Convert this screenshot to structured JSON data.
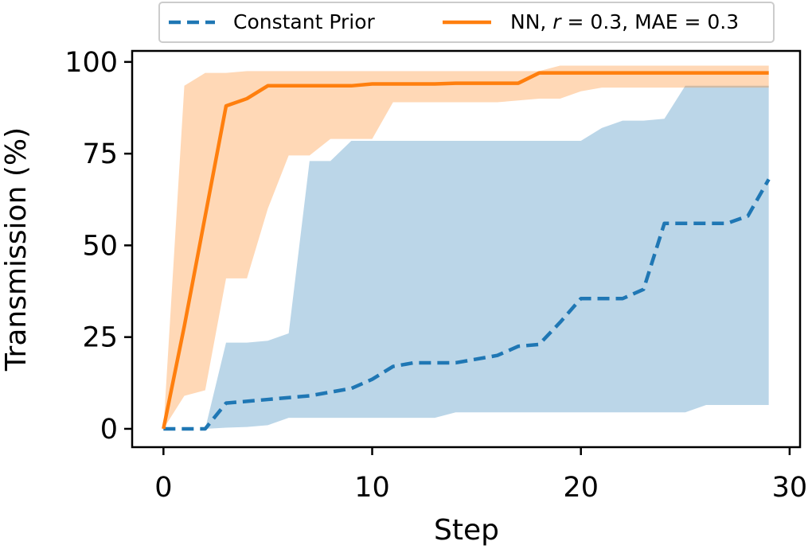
{
  "chart_data": {
    "type": "line",
    "xlabel": "Step",
    "ylabel": "Transmission (%)",
    "xlim": [
      -1.5,
      30.5
    ],
    "ylim": [
      -5,
      103
    ],
    "xticks": [
      0,
      10,
      20,
      30
    ],
    "yticks": [
      0,
      25,
      50,
      75,
      100
    ],
    "xtick_labels": [
      "0",
      "10",
      "20",
      "30"
    ],
    "ytick_labels": [
      "0",
      "25",
      "50",
      "75",
      "100"
    ],
    "grid": false,
    "legend_position": "top-center-outside",
    "series": [
      {
        "name": "Constant Prior",
        "color": "#1f77b4",
        "linestyle": "dashed",
        "x": [
          0,
          1,
          2,
          3,
          4,
          5,
          6,
          7,
          8,
          9,
          10,
          11,
          12,
          13,
          14,
          15,
          16,
          17,
          18,
          19,
          20,
          21,
          22,
          23,
          24,
          25,
          26,
          27,
          28,
          29
        ],
        "y": [
          0,
          0,
          0,
          7,
          7.5,
          8,
          8.5,
          9,
          10,
          11,
          13.5,
          17,
          18,
          18,
          18,
          19,
          20,
          22.5,
          23,
          29,
          35.5,
          35.5,
          35.5,
          38,
          56,
          56,
          56,
          56,
          58,
          68
        ],
        "band_lower": [
          0,
          0,
          0,
          0.3,
          0.5,
          1,
          3,
          3,
          3,
          3,
          3,
          3,
          3,
          3,
          4.5,
          4.5,
          4.5,
          4.5,
          4.5,
          4.5,
          4.5,
          4.5,
          4.5,
          4.5,
          4.5,
          4.5,
          6.5,
          6.5,
          6.5,
          6.5
        ],
        "band_upper": [
          0,
          0,
          0,
          23.5,
          23.5,
          24,
          26,
          73,
          73,
          78.5,
          78.5,
          78.5,
          78.5,
          78.5,
          78.5,
          78.5,
          78.5,
          78.5,
          78.5,
          78.5,
          78.5,
          82,
          84,
          84,
          84.5,
          93.5,
          93.5,
          93.5,
          93.5,
          93.5
        ],
        "band_color": "#1f77b4",
        "band_opacity": 0.3
      },
      {
        "name": "NN, r = 0.3, MAE = 0.3",
        "color": "#ff7f0e",
        "linestyle": "solid",
        "x": [
          0,
          1,
          2,
          3,
          4,
          5,
          6,
          7,
          8,
          9,
          10,
          11,
          12,
          13,
          14,
          15,
          16,
          17,
          18,
          19,
          20,
          21,
          22,
          23,
          24,
          25,
          26,
          27,
          28,
          29
        ],
        "y": [
          0,
          28,
          58,
          88,
          90,
          93.5,
          93.5,
          93.5,
          93.5,
          93.5,
          94,
          94,
          94,
          94,
          94.2,
          94.2,
          94.2,
          94.2,
          97,
          97,
          97,
          97,
          97,
          97,
          97,
          97,
          97,
          97,
          97,
          97
        ],
        "band_lower": [
          0,
          9,
          10.5,
          41,
          41,
          60,
          74.5,
          74.5,
          79,
          79,
          79,
          89,
          89,
          89,
          89,
          89,
          89,
          89.5,
          90,
          90,
          92,
          93,
          93,
          93,
          93,
          93,
          93,
          93,
          93,
          93
        ],
        "band_upper": [
          0,
          93.5,
          97,
          97,
          97.5,
          97.5,
          97.5,
          97.5,
          97.5,
          97.5,
          97.5,
          97.5,
          97.5,
          97.5,
          97.5,
          97.5,
          97.5,
          97.5,
          97.5,
          99,
          99,
          99,
          99,
          99,
          99,
          99,
          99,
          99,
          99,
          99
        ],
        "band_color": "#ff7f0e",
        "band_opacity": 0.3
      }
    ],
    "legend": [
      {
        "label_plain": "Constant Prior",
        "series_index": 0
      },
      {
        "label_prefix": "NN, ",
        "label_r_sym": "r",
        "label_r_rest": " = 0.3, MAE = 0.3",
        "series_index": 1
      }
    ]
  }
}
